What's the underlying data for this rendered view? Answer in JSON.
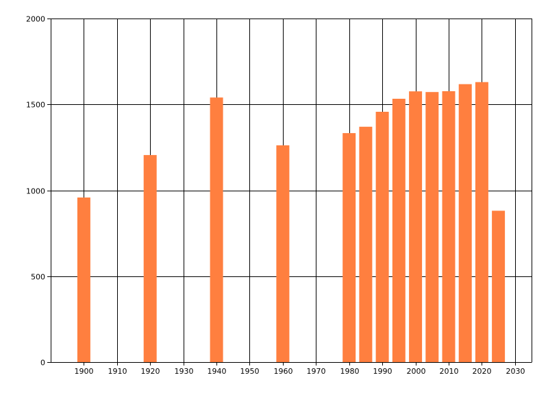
{
  "chart_data": {
    "type": "bar",
    "title": "",
    "xlabel": "",
    "ylabel": "",
    "xlim": [
      1890,
      2035
    ],
    "ylim": [
      0,
      2000
    ],
    "x_ticks": [
      1900,
      1910,
      1920,
      1930,
      1940,
      1950,
      1960,
      1970,
      1980,
      1990,
      2000,
      2010,
      2020,
      2030
    ],
    "y_ticks": [
      0,
      500,
      1000,
      1500,
      2000
    ],
    "grid": true,
    "legend": "none",
    "bar_color": "#ff7f3f",
    "x": [
      1900,
      1920,
      1940,
      1960,
      1980,
      1985,
      1990,
      1995,
      2000,
      2005,
      2010,
      2015,
      2020,
      2025
    ],
    "values": [
      958,
      1205,
      1540,
      1262,
      1333,
      1370,
      1457,
      1533,
      1576,
      1572,
      1577,
      1618,
      1630,
      881
    ]
  }
}
